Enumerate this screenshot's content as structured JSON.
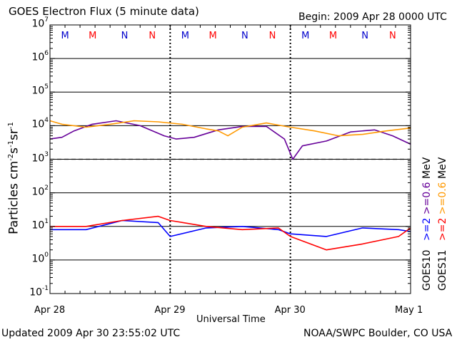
{
  "header": {
    "title": "GOES Electron Flux (5 minute data)",
    "begin": "Begin: 2009 Apr 28 0000 UTC"
  },
  "footer": {
    "updated": "Updated 2009 Apr 30 23:55:02 UTC",
    "credit": "NOAA/SWPC Boulder, CO USA"
  },
  "chart_data": {
    "type": "line",
    "title": "GOES Electron Flux (5 minute data)",
    "xlabel": "Universal Time",
    "ylabel_parts": {
      "base": "Particles cm",
      "exp1": "-2",
      "mid1": "s",
      "exp2": "-1",
      "mid2": "sr",
      "exp3": "-1"
    },
    "x_ticks": [
      "Apr 28",
      "Apr 29",
      "Apr 30",
      "May 1"
    ],
    "x_unit": "days since Apr 28 0000 UTC",
    "xlim": [
      0,
      3
    ],
    "y_scale": "log",
    "ylim": [
      0.1,
      10000000
    ],
    "y_ticks": [
      {
        "base": "10",
        "exp": "-1"
      },
      {
        "base": "10",
        "exp": "0"
      },
      {
        "base": "10",
        "exp": "1"
      },
      {
        "base": "10",
        "exp": "2"
      },
      {
        "base": "10",
        "exp": "3"
      },
      {
        "base": "10",
        "exp": "4"
      },
      {
        "base": "10",
        "exp": "5"
      },
      {
        "base": "10",
        "exp": "6"
      },
      {
        "base": "10",
        "exp": "7"
      }
    ],
    "threshold_line": 1000,
    "noon_midnight_markers": [
      {
        "label": "M",
        "color": "#0000cc",
        "x": 0.27
      },
      {
        "label": "M",
        "color": "#ff0000",
        "x": 0.5
      },
      {
        "label": "N",
        "color": "#0000cc",
        "x": 0.77
      },
      {
        "label": "N",
        "color": "#ff0000",
        "x": 1.0
      },
      {
        "label": "M",
        "color": "#0000cc",
        "x": 1.27
      },
      {
        "label": "M",
        "color": "#ff0000",
        "x": 1.5
      },
      {
        "label": "N",
        "color": "#0000cc",
        "x": 1.77
      },
      {
        "label": "N",
        "color": "#ff0000",
        "x": 2.0
      },
      {
        "label": "M",
        "color": "#0000cc",
        "x": 2.27
      },
      {
        "label": "M",
        "color": "#ff0000",
        "x": 2.5
      },
      {
        "label": "N",
        "color": "#0000cc",
        "x": 2.77
      },
      {
        "label": "N",
        "color": "#ff0000",
        "x": 3.0
      }
    ],
    "series": [
      {
        "name": ">=0.6 MeV",
        "satellite": "GOES10",
        "color": "#660099",
        "x": [
          0,
          0.1,
          0.2,
          0.35,
          0.55,
          0.75,
          0.95,
          1.05,
          1.2,
          1.4,
          1.6,
          1.8,
          1.95,
          2.02,
          2.1,
          2.3,
          2.5,
          2.7,
          2.85,
          3.0
        ],
        "values": [
          4000,
          4500,
          7000,
          11000,
          14000,
          10000,
          5000,
          4000,
          4500,
          7500,
          9500,
          9500,
          4000,
          1000,
          2500,
          3500,
          6500,
          7500,
          5000,
          2800
        ]
      },
      {
        "name": ">=0.6 MeV",
        "satellite": "GOES11",
        "color": "#ff9900",
        "x": [
          0,
          0.1,
          0.3,
          0.5,
          0.7,
          0.9,
          1.1,
          1.3,
          1.4,
          1.48,
          1.6,
          1.8,
          2.0,
          2.2,
          2.4,
          2.6,
          2.8,
          3.0
        ],
        "values": [
          14000,
          11000,
          9000,
          11000,
          14000,
          13000,
          11000,
          8000,
          7000,
          5000,
          9000,
          12000,
          9000,
          7000,
          5000,
          5500,
          7000,
          8500
        ]
      },
      {
        "name": ">=2 MeV",
        "satellite": "GOES10",
        "color": "#0000ff",
        "x": [
          0,
          0.3,
          0.6,
          0.9,
          1.0,
          1.3,
          1.6,
          1.9,
          2.0,
          2.3,
          2.6,
          2.9,
          3.0
        ],
        "values": [
          8,
          8,
          15,
          13,
          5,
          9,
          10,
          8,
          6,
          5,
          9,
          8,
          7
        ]
      },
      {
        "name": ">=2 MeV",
        "satellite": "GOES11",
        "color": "#ff0000",
        "x": [
          0,
          0.3,
          0.6,
          0.9,
          1.0,
          1.3,
          1.6,
          1.9,
          2.0,
          2.3,
          2.6,
          2.9,
          3.0
        ],
        "values": [
          10,
          10,
          15,
          20,
          15,
          10,
          8,
          9,
          5,
          2,
          3,
          5,
          9
        ]
      }
    ],
    "legend_columns": [
      {
        "satellite": "GOES10",
        "items": [
          {
            "text": ">=2",
            "color": "#0000ff"
          },
          {
            "text": ">=0.6",
            "color": "#660099"
          }
        ]
      },
      {
        "satellite": "GOES11",
        "items": [
          {
            "text": ">=2",
            "color": "#ff0000"
          },
          {
            "text": ">=0.6",
            "color": "#ff9900"
          }
        ]
      }
    ],
    "legend_unit": "MeV"
  }
}
